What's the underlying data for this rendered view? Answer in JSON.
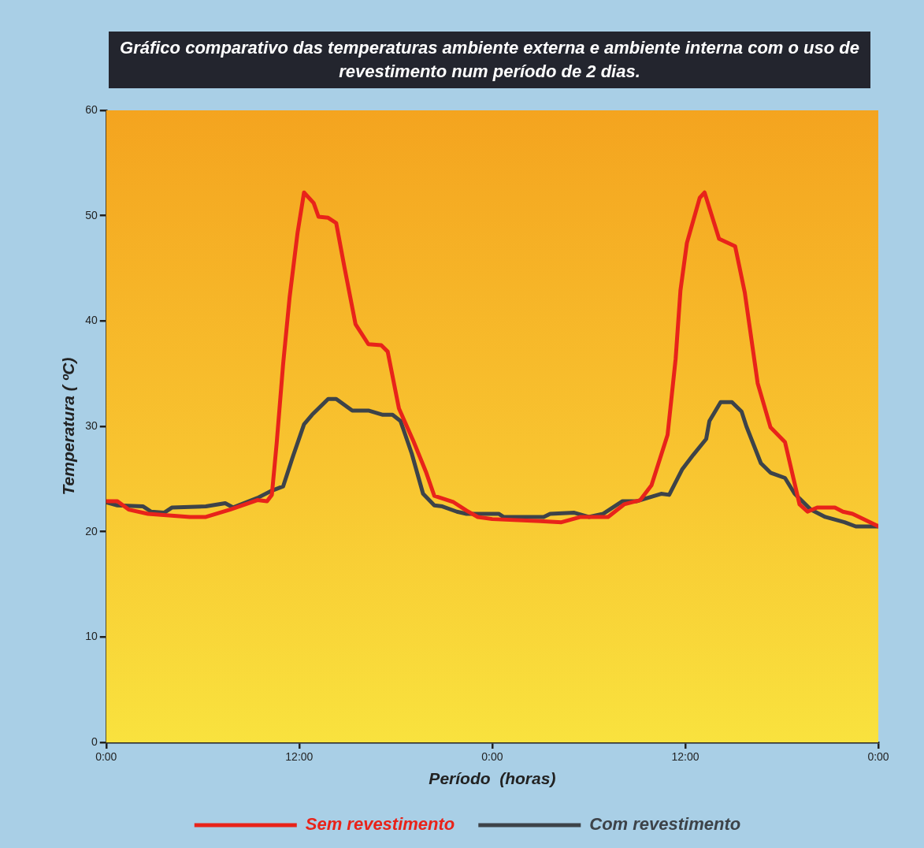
{
  "chart_data": {
    "type": "line",
    "title": "Gráfico comparativo das temperaturas ambiente externa e ambiente interna com o uso de revestimento num período de 2 dias.",
    "xlabel": "Período  (horas)",
    "ylabel": "Temperatura ( ºC)",
    "xlim": [
      "--01-01T00:00",
      "--01-03T00:00"
    ],
    "xticks": [
      {
        "value": "--01-01T00:00",
        "label": "0:00"
      },
      {
        "value": "--01-01T12:00",
        "label": "12:00"
      },
      {
        "value": "--01-02T00:00",
        "label": "0:00"
      },
      {
        "value": "--01-02T12:00",
        "label": "12:00"
      },
      {
        "value": "--01-03T00:00",
        "label": "0:00"
      }
    ],
    "ylim": [
      0,
      60
    ],
    "yticks": [
      0,
      10,
      20,
      30,
      40,
      50,
      60
    ],
    "grid": false,
    "legend": "bottom",
    "marker": "none",
    "line_style": "solid",
    "series": [
      {
        "name": "Sem revestimento",
        "color": "#e8231a",
        "x": [
          "--01-01T00:00",
          "--01-01T00:42",
          "--01-01T01:24",
          "--01-01T02:36",
          "--01-01T05:12",
          "--01-01T06:12",
          "--01-01T07:42",
          "--01-01T09:24",
          "--01-01T10:00",
          "--01-01T10:18",
          "--01-01T10:36",
          "--01-01T11:00",
          "--01-01T11:24",
          "--01-01T11:54",
          "--01-01T12:18",
          "--01-01T12:54",
          "--01-01T13:12",
          "--01-01T13:48",
          "--01-01T14:18",
          "--01-01T14:48",
          "--01-01T15:30",
          "--01-01T16:18",
          "--01-01T17:06",
          "--01-01T17:30",
          "--01-01T18:12",
          "--01-01T19:06",
          "--01-01T19:54",
          "--01-01T20:24",
          "--01-01T21:36",
          "--01-01T22:24",
          "--01-01T23:06",
          "--01-02T00:00",
          "--01-02T03:00",
          "--01-02T04:18",
          "--01-02T05:30",
          "--01-02T07:12",
          "--01-02T08:12",
          "--01-02T09:12",
          "--01-02T09:54",
          "--01-02T10:54",
          "--01-02T11:24",
          "--01-02T11:42",
          "--01-02T12:06",
          "--01-02T12:54",
          "--01-02T13:12",
          "--01-02T14:06",
          "--01-02T15:06",
          "--01-02T15:42",
          "--01-02T16:30",
          "--01-02T17:18",
          "--01-02T18:12",
          "--01-02T19:06",
          "--01-02T19:36",
          "--01-02T20:12",
          "--01-02T21:18",
          "--01-02T21:48",
          "--01-02T22:24",
          "--01-02T23:54",
          "--01-03T00:00"
        ],
        "values": [
          22.9,
          22.9,
          22.1,
          21.7,
          21.4,
          21.4,
          22.1,
          23.0,
          22.9,
          23.5,
          28.4,
          35.9,
          42.2,
          48.4,
          52.2,
          51.2,
          49.9,
          49.8,
          49.3,
          45.2,
          39.7,
          37.8,
          37.7,
          37.1,
          31.7,
          28.6,
          25.6,
          23.4,
          22.8,
          22.0,
          21.4,
          21.2,
          21.0,
          20.9,
          21.4,
          21.4,
          22.6,
          23.0,
          24.4,
          29.2,
          36.4,
          42.9,
          47.4,
          51.7,
          52.2,
          47.8,
          47.1,
          42.7,
          34.1,
          29.9,
          28.5,
          22.6,
          21.9,
          22.3,
          22.3,
          21.9,
          21.7,
          20.6,
          20.5
        ]
      },
      {
        "name": "Com revestimento",
        "color": "#3d4349",
        "x": [
          "--01-01T00:00",
          "--01-01T00:42",
          "--01-01T02:18",
          "--01-01T02:48",
          "--01-01T03:36",
          "--01-01T04:06",
          "--01-01T06:12",
          "--01-01T07:24",
          "--01-01T07:54",
          "--01-01T09:24",
          "--01-01T10:18",
          "--01-01T11:00",
          "--01-01T11:36",
          "--01-01T12:18",
          "--01-01T12:48",
          "--01-01T13:48",
          "--01-01T14:18",
          "--01-01T15:18",
          "--01-01T16:18",
          "--01-01T17:12",
          "--01-01T17:48",
          "--01-01T18:18",
          "--01-01T19:00",
          "--01-01T19:42",
          "--01-01T20:24",
          "--01-01T20:54",
          "--01-01T21:48",
          "--01-01T22:24",
          "--01-02T00:24",
          "--01-02T00:42",
          "--01-02T03:12",
          "--01-02T03:36",
          "--01-02T05:06",
          "--01-02T06:00",
          "--01-02T06:54",
          "--01-02T08:06",
          "--01-02T09:00",
          "--01-02T10:30",
          "--01-02T11:00",
          "--01-02T11:48",
          "--01-02T12:30",
          "--01-02T13:18",
          "--01-02T13:30",
          "--01-02T14:12",
          "--01-02T14:54",
          "--01-02T15:30",
          "--01-02T15:48",
          "--01-02T16:42",
          "--01-02T17:18",
          "--01-02T18:12",
          "--01-02T18:48",
          "--01-02T19:48",
          "--01-02T20:42",
          "--01-02T21:54",
          "--01-02T22:36",
          "--01-02T23:54",
          "--01-03T00:00"
        ],
        "values": [
          22.8,
          22.5,
          22.4,
          21.9,
          21.8,
          22.3,
          22.4,
          22.7,
          22.3,
          23.2,
          23.9,
          24.3,
          27.1,
          30.2,
          31.1,
          32.6,
          32.6,
          31.5,
          31.5,
          31.1,
          31.1,
          30.5,
          27.4,
          23.6,
          22.5,
          22.4,
          21.9,
          21.7,
          21.7,
          21.4,
          21.4,
          21.7,
          21.8,
          21.4,
          21.7,
          22.9,
          22.9,
          23.6,
          23.5,
          25.9,
          27.3,
          28.8,
          30.5,
          32.3,
          32.3,
          31.4,
          30.0,
          26.5,
          25.6,
          25.1,
          23.6,
          22.1,
          21.4,
          20.9,
          20.5,
          20.5,
          20.5
        ]
      }
    ]
  }
}
